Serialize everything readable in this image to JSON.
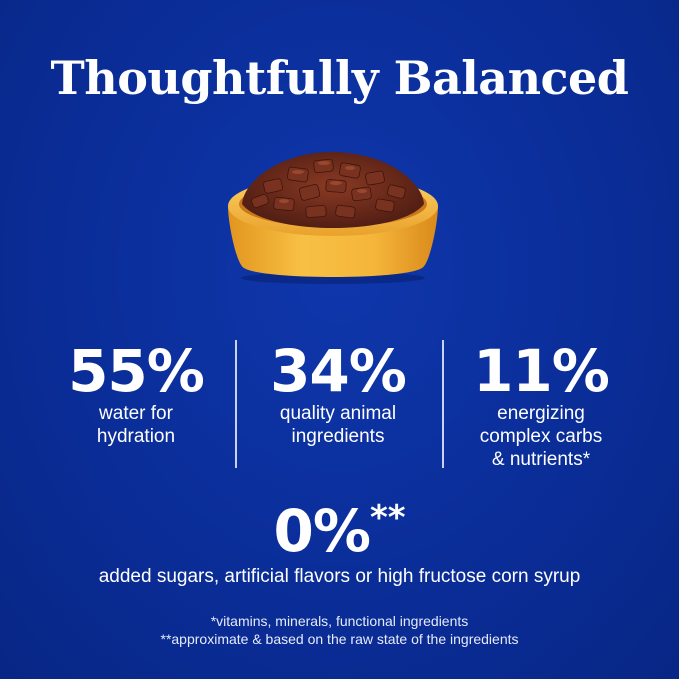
{
  "title": "Thoughtfully Balanced",
  "stats": [
    {
      "value": "55%",
      "line1": "water for",
      "line2": "hydration",
      "line3": ""
    },
    {
      "value": "34%",
      "line1": "quality animal",
      "line2": "ingredients",
      "line3": ""
    },
    {
      "value": "11%",
      "line1": "energizing",
      "line2": "complex carbs",
      "line3": "& nutrients*"
    }
  ],
  "zero": {
    "value": "0%",
    "marker": "**",
    "desc": "added sugars, artificial flavors or high fructose corn syrup"
  },
  "footnotes": [
    "*vitamins, minerals, functional ingredients",
    "**approximate & based on the raw state of the ingredients"
  ],
  "colors": {
    "background": "#0b2f9c",
    "text": "#ffffff",
    "bowl": "#f4b43a",
    "food": "#6b2a1c"
  },
  "icons": {
    "bowl": "food-bowl-icon"
  }
}
